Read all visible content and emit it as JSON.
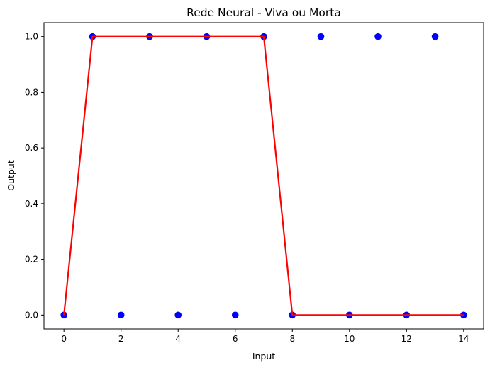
{
  "chart_data": {
    "type": "scatter",
    "title": "Rede Neural - Viva ou Morta",
    "xlabel": "Input",
    "ylabel": "Output",
    "xlim": [
      -0.7,
      14.7
    ],
    "ylim": [
      -0.05,
      1.05
    ],
    "xticks": [
      0,
      2,
      4,
      6,
      8,
      10,
      12,
      14
    ],
    "yticks": [
      0.0,
      0.2,
      0.4,
      0.6,
      0.8,
      1.0
    ],
    "xtick_labels": [
      "0",
      "2",
      "4",
      "6",
      "8",
      "10",
      "12",
      "14"
    ],
    "ytick_labels": [
      "0.0",
      "0.2",
      "0.4",
      "0.6",
      "0.8",
      "1.0"
    ],
    "grid": false,
    "legend": "none",
    "series": [
      {
        "kind": "scatter",
        "color": "#0000ff",
        "x": [
          0,
          1,
          2,
          3,
          4,
          5,
          6,
          7,
          8,
          9,
          10,
          11,
          12,
          13,
          14
        ],
        "y": [
          0,
          1,
          0,
          1,
          0,
          1,
          0,
          1,
          0,
          1,
          0,
          1,
          0,
          1,
          0
        ]
      },
      {
        "kind": "line",
        "color": "#ff0000",
        "x": [
          0,
          1,
          2,
          3,
          4,
          5,
          6,
          7,
          8,
          9,
          10,
          11,
          12,
          13,
          14
        ],
        "y": [
          0,
          1,
          1,
          1,
          1,
          1,
          1,
          1,
          0,
          0,
          0,
          0,
          0,
          0,
          0
        ]
      }
    ]
  }
}
